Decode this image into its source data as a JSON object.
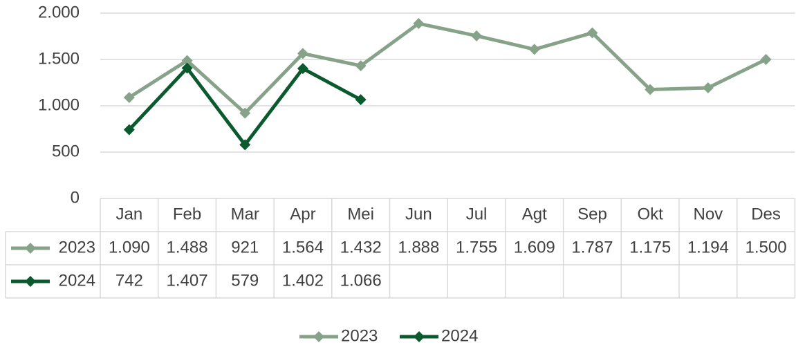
{
  "chart_data": {
    "type": "line",
    "categories": [
      "Jan",
      "Feb",
      "Mar",
      "Apr",
      "Mei",
      "Jun",
      "Jul",
      "Agt",
      "Sep",
      "Okt",
      "Nov",
      "Des"
    ],
    "series": [
      {
        "name": "2023",
        "color": "#86a38a",
        "values": [
          1090,
          1488,
          921,
          1564,
          1432,
          1888,
          1755,
          1609,
          1787,
          1175,
          1194,
          1500
        ],
        "value_labels": [
          "1.090",
          "1.488",
          "921",
          "1.564",
          "1.432",
          "1.888",
          "1.755",
          "1.609",
          "1.787",
          "1.175",
          "1.194",
          "1.500"
        ]
      },
      {
        "name": "2024",
        "color": "#0b5a2e",
        "values": [
          742,
          1407,
          579,
          1402,
          1066,
          null,
          null,
          null,
          null,
          null,
          null,
          null
        ],
        "value_labels": [
          "742",
          "1.407",
          "579",
          "1.402",
          "1.066",
          null,
          null,
          null,
          null,
          null,
          null,
          null
        ]
      }
    ],
    "ylim": [
      0,
      2000
    ],
    "yticks": [
      0,
      {
        "value": 500,
        "label": "500"
      },
      {
        "value": 1000,
        "label": "1.000"
      },
      {
        "value": 1500,
        "label": "1.500"
      },
      {
        "value": 2000,
        "label": "2.000"
      }
    ],
    "grid": true,
    "legend": "bottom",
    "data_table": true
  }
}
